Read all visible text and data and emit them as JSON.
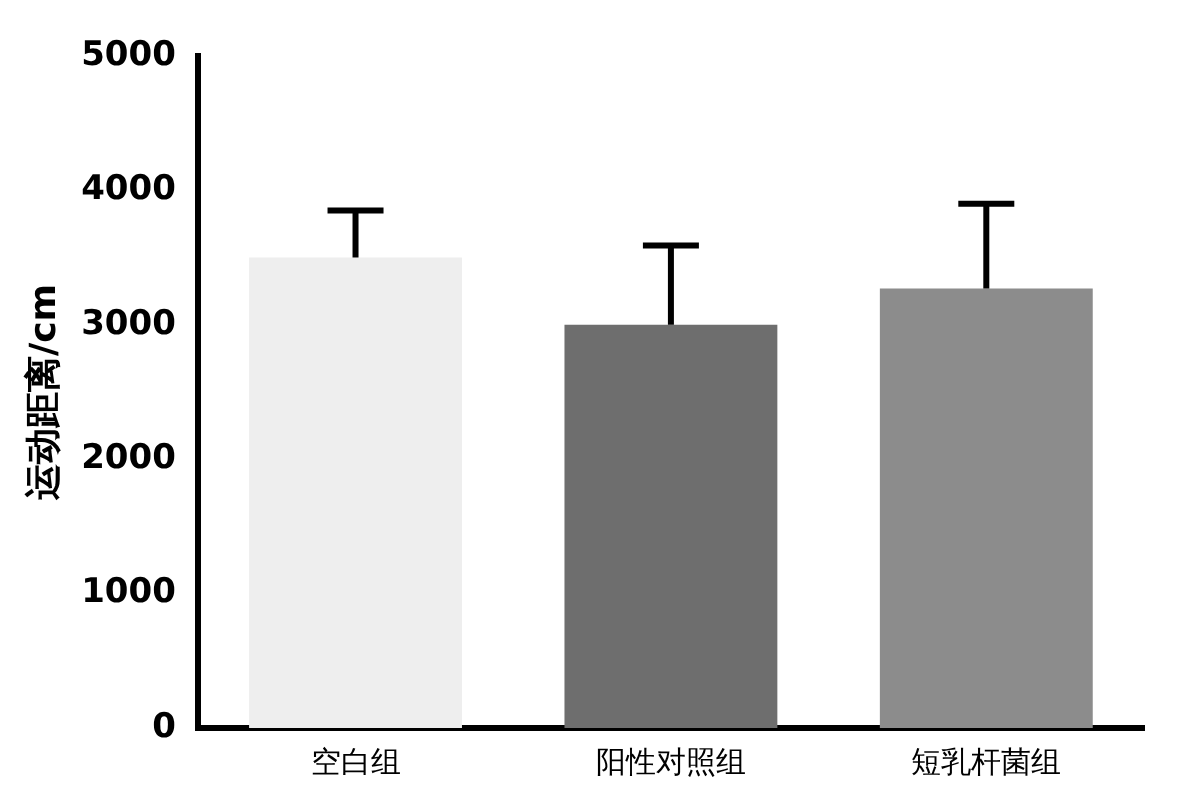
{
  "chart_data": {
    "type": "bar",
    "ylabel": "运动距离/cm",
    "categories": [
      "空白组",
      "阳性对照组",
      "短乳杆菌组"
    ],
    "values": [
      3500,
      3000,
      3270
    ],
    "errors": [
      [
        3500,
        3850
      ],
      [
        3000,
        3590
      ],
      [
        3270,
        3900
      ]
    ],
    "colors": [
      "#eeeeee",
      "#6e6e6e",
      "#8c8c8c"
    ],
    "ylim": [
      0,
      5000
    ],
    "yticks": [
      0,
      1000,
      2000,
      3000,
      4000,
      5000
    ],
    "grid": false,
    "legend": false
  }
}
